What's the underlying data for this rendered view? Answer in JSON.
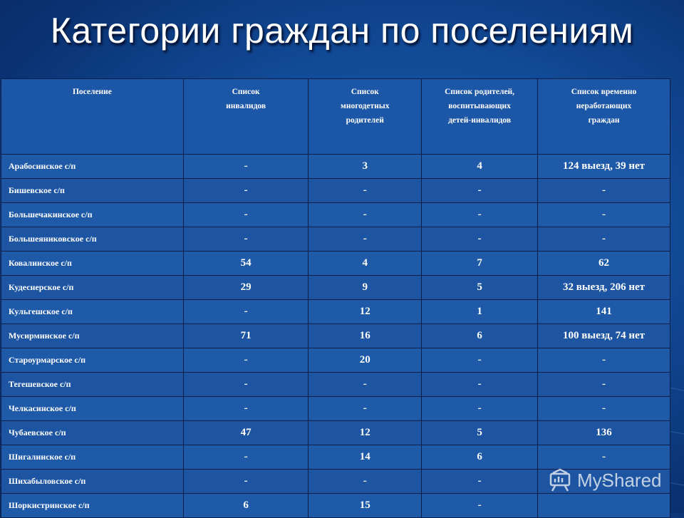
{
  "slide": {
    "title": "Категории граждан по поселениям"
  },
  "table": {
    "headers": {
      "settlement": "Поселение",
      "disabled": "Список\nинвалидов",
      "large_families": "Список\nмногодетных\nродителей",
      "parents_disabled_children": "Список родителей,\nвоспитывающих\nдетей-инвалидов",
      "unemployed": "Список временно\nнеработающих\nграждан"
    },
    "rows": [
      {
        "settlement": "Арабосинское с/п",
        "disabled": "-",
        "large_families": "3",
        "parents_disabled_children": "4",
        "unemployed": "124 выезд, 39 нет"
      },
      {
        "settlement": "Бишевское с/п",
        "disabled": "-",
        "large_families": "-",
        "parents_disabled_children": "-",
        "unemployed": "-"
      },
      {
        "settlement": "Большечакинское с/п",
        "disabled": "-",
        "large_families": "-",
        "parents_disabled_children": "-",
        "unemployed": "-"
      },
      {
        "settlement": "Большеяниковское с/п",
        "disabled": "-",
        "large_families": "-",
        "parents_disabled_children": "-",
        "unemployed": "-"
      },
      {
        "settlement": "Ковалинское с/п",
        "disabled": "54",
        "large_families": "4",
        "parents_disabled_children": "7",
        "unemployed": "62"
      },
      {
        "settlement": "Кудеснерское с/п",
        "disabled": "29",
        "large_families": "9",
        "parents_disabled_children": "5",
        "unemployed": "32 выезд, 206 нет"
      },
      {
        "settlement": "Кульгешское с/п",
        "disabled": "-",
        "large_families": "12",
        "parents_disabled_children": "1",
        "unemployed": "141"
      },
      {
        "settlement": "Мусирминское с/п",
        "disabled": "71",
        "large_families": "16",
        "parents_disabled_children": "6",
        "unemployed": "100 выезд, 74 нет"
      },
      {
        "settlement": "Староурмарское с/п",
        "disabled": "-",
        "large_families": "20",
        "parents_disabled_children": "-",
        "unemployed": "-"
      },
      {
        "settlement": "Тегешевское с/п",
        "disabled": "-",
        "large_families": "-",
        "parents_disabled_children": "-",
        "unemployed": "-"
      },
      {
        "settlement": "Челкасинское с/п",
        "disabled": "-",
        "large_families": "-",
        "parents_disabled_children": "-",
        "unemployed": "-"
      },
      {
        "settlement": "Чубаевское с/п",
        "disabled": "47",
        "large_families": "12",
        "parents_disabled_children": "5",
        "unemployed": "136"
      },
      {
        "settlement": "Шигалинское с/п",
        "disabled": "-",
        "large_families": "14",
        "parents_disabled_children": "6",
        "unemployed": "-"
      },
      {
        "settlement": "Шихабыловское с/п",
        "disabled": "-",
        "large_families": "-",
        "parents_disabled_children": "-",
        "unemployed": "-"
      },
      {
        "settlement": "Шоркистринское с/п",
        "disabled": "6",
        "large_families": "15",
        "parents_disabled_children": "-",
        "unemployed": ""
      }
    ]
  },
  "watermark": {
    "text": "MyShared",
    "icon": "presentation-board-icon"
  }
}
